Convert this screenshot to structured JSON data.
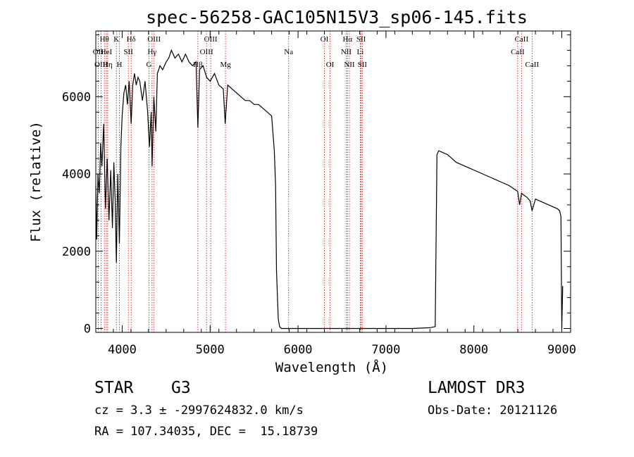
{
  "chart_data": {
    "type": "line",
    "title": "spec-56258-GAC105N15V3_sp06-145.fits",
    "xlabel": "Wavelength (Å)",
    "ylabel": "Flux (relative)",
    "xlim": [
      3700,
      9100
    ],
    "ylim": [
      -100,
      7700
    ],
    "x_ticks": [
      4000,
      5000,
      6000,
      7000,
      8000,
      9000
    ],
    "x_tick_labels": [
      "4000",
      "5000",
      "6000",
      "7000",
      "8000",
      "9000"
    ],
    "y_ticks": [
      0,
      2000,
      4000,
      6000
    ],
    "y_tick_labels": [
      "0",
      "2000",
      "4000",
      "6000"
    ],
    "series": [
      {
        "name": "spectrum",
        "x": [
          3700,
          3710,
          3725,
          3740,
          3755,
          3770,
          3790,
          3810,
          3830,
          3850,
          3870,
          3889,
          3905,
          3920,
          3934,
          3950,
          3968,
          3985,
          4000,
          4020,
          4040,
          4060,
          4080,
          4102,
          4120,
          4140,
          4160,
          4180,
          4200,
          4230,
          4260,
          4290,
          4310,
          4330,
          4340,
          4360,
          4383,
          4400,
          4430,
          4460,
          4500,
          4530,
          4560,
          4600,
          4640,
          4680,
          4720,
          4760,
          4800,
          4840,
          4861,
          4880,
          4920,
          4960,
          5000,
          5050,
          5100,
          5150,
          5172,
          5200,
          5250,
          5300,
          5350,
          5400,
          5450,
          5500,
          5550,
          5600,
          5650,
          5700,
          5730,
          5745,
          5755,
          5765,
          5775,
          5790,
          5810,
          5850,
          6000,
          6500,
          7000,
          7300,
          7500,
          7560,
          7580,
          7600,
          7650,
          7700,
          7750,
          7800,
          7850,
          7900,
          7950,
          8000,
          8100,
          8200,
          8300,
          8400,
          8498,
          8520,
          8542,
          8570,
          8600,
          8640,
          8662,
          8700,
          8750,
          8800,
          8850,
          8900,
          8950,
          8975,
          8990,
          9000,
          9010
        ],
        "y": [
          3700,
          2300,
          4000,
          3500,
          4800,
          4200,
          5300,
          3100,
          4400,
          2800,
          4100,
          2600,
          4300,
          3300,
          1700,
          4000,
          2200,
          4700,
          5500,
          6100,
          6300,
          5800,
          6400,
          5300,
          6300,
          6600,
          6300,
          6500,
          6400,
          5900,
          6400,
          5600,
          4700,
          5600,
          4200,
          6000,
          5100,
          6600,
          6800,
          6700,
          6900,
          7000,
          7200,
          7000,
          7100,
          6900,
          7100,
          6900,
          6800,
          6900,
          5200,
          6700,
          6800,
          6500,
          6400,
          6600,
          6300,
          6200,
          5300,
          6300,
          6200,
          6100,
          6000,
          5900,
          5900,
          5800,
          5800,
          5700,
          5600,
          5500,
          4600,
          3700,
          1500,
          900,
          250,
          50,
          0,
          0,
          0,
          0,
          0,
          0,
          20,
          50,
          4500,
          4600,
          4550,
          4500,
          4400,
          4300,
          4250,
          4200,
          4150,
          4100,
          4000,
          3900,
          3800,
          3700,
          3550,
          3200,
          3500,
          3450,
          3400,
          3300,
          3050,
          3350,
          3300,
          3250,
          3200,
          3150,
          3100,
          3050,
          2900,
          0,
          1100
        ]
      }
    ],
    "lines": [
      {
        "label": "Hθ",
        "x": 3798,
        "row": 1
      },
      {
        "label": "OII",
        "x": 3727,
        "row": 2
      },
      {
        "label": "OIII",
        "x": 3760,
        "row": 3
      },
      {
        "label": "HeI",
        "x": 3820,
        "row": 2
      },
      {
        "label": "Hη",
        "x": 3835,
        "row": 3
      },
      {
        "label": "K",
        "x": 3934,
        "row": 1
      },
      {
        "label": "SII",
        "x": 4070,
        "row": 2
      },
      {
        "label": "H",
        "x": 3968,
        "row": 3
      },
      {
        "label": "Hδ",
        "x": 4102,
        "row": 1
      },
      {
        "label": "OIII",
        "x": 4363,
        "row": 1
      },
      {
        "label": "Hγ",
        "x": 4340,
        "row": 2
      },
      {
        "label": "G",
        "x": 4305,
        "row": 3
      },
      {
        "label": "OIII",
        "x": 5007,
        "row": 1
      },
      {
        "label": "OIII",
        "x": 4959,
        "row": 2
      },
      {
        "label": "Hβ",
        "x": 4861,
        "row": 3
      },
      {
        "label": "Mg",
        "x": 5175,
        "row": 3
      },
      {
        "label": "Na",
        "x": 5893,
        "row": 2
      },
      {
        "label": "OI",
        "x": 6300,
        "row": 1
      },
      {
        "label": "OI",
        "x": 6364,
        "row": 3
      },
      {
        "label": "Hα",
        "x": 6563,
        "row": 1
      },
      {
        "label": "SII",
        "x": 6717,
        "row": 1
      },
      {
        "label": "NII",
        "x": 6548,
        "row": 2
      },
      {
        "label": "Li",
        "x": 6708,
        "row": 2
      },
      {
        "label": "NII",
        "x": 6584,
        "row": 3
      },
      {
        "label": "SII",
        "x": 6731,
        "row": 3
      },
      {
        "label": "CaII",
        "x": 8542,
        "row": 1
      },
      {
        "label": "CaII",
        "x": 8498,
        "row": 2
      },
      {
        "label": "CaII",
        "x": 8662,
        "row": 3
      }
    ]
  },
  "info": {
    "class": "STAR",
    "subclass": "G3",
    "survey": "LAMOST DR3",
    "cz": "cz = 3.3 ± -2997624832.0 km/s",
    "obs_date": "Obs-Date: 20121126",
    "coords": "RA = 107.34035, DEC =  15.18739"
  }
}
